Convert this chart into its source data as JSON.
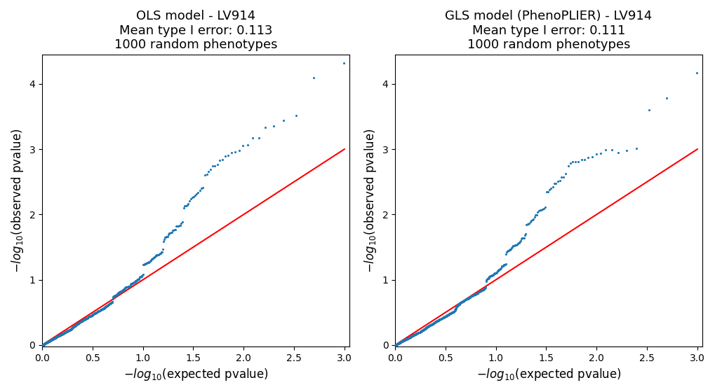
{
  "left_title": "OLS model - LV914\nMean type I error: 0.113\n1000 random phenotypes",
  "right_title": "GLS model (PhenoPLIER) - LV914\nMean type I error: 0.111\n1000 random phenotypes",
  "xlabel": "$-log_{10}$(expected pvalue)",
  "ylabel": "$-log_{10}$(observed pvalue)",
  "xlim": [
    0,
    3.05
  ],
  "ylim": [
    -0.02,
    4.45
  ],
  "dot_color": "#1f77b4",
  "line_color": "red",
  "dot_size": 5,
  "title_fontsize": 13,
  "label_fontsize": 12,
  "tick_fontsize": 10
}
